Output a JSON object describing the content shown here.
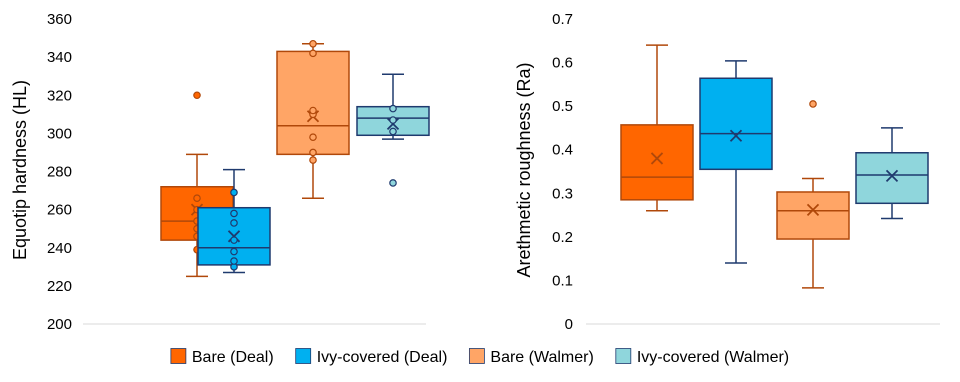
{
  "chart_data": [
    {
      "type": "box",
      "ylabel": "Equotip hardness (HL)",
      "xlabel": "",
      "ylim": [
        200,
        360
      ],
      "yticks": [
        200,
        220,
        240,
        260,
        280,
        300,
        320,
        340,
        360
      ],
      "grid": false,
      "series": [
        {
          "name": "Bare (Deal)",
          "color": "#FF6600",
          "edge": "#B0480A",
          "min": 225,
          "q1": 244,
          "median": 254,
          "q3": 272,
          "max": 289,
          "mean": 260,
          "points": [
            239,
            246,
            250,
            254,
            260,
            266,
            320
          ]
        },
        {
          "name": "Ivy-covered (Deal)",
          "color": "#00B0F0",
          "edge": "#1F3A6E",
          "min": 227,
          "q1": 231,
          "median": 240,
          "q3": 261,
          "max": 281,
          "mean": 246,
          "points": [
            230,
            233,
            238,
            244,
            253,
            258,
            269
          ]
        },
        {
          "name": "Bare (Walmer)",
          "color": "#FFA566",
          "edge": "#B0480A",
          "min": 266,
          "q1": 289,
          "median": 304,
          "q3": 343,
          "max": 347,
          "mean": 309,
          "points": [
            286,
            290,
            298,
            310,
            312,
            342,
            347
          ]
        },
        {
          "name": "Ivy-covered (Walmer)",
          "color": "#8FD6DC",
          "edge": "#1F3A6E",
          "min": 297,
          "q1": 299,
          "median": 308,
          "q3": 314,
          "max": 331,
          "mean": 305,
          "points": [
            274,
            301,
            307,
            313
          ]
        }
      ]
    },
    {
      "type": "box",
      "ylabel": "Arethmetic roughness (Ra)",
      "xlabel": "",
      "ylim": [
        0,
        0.7
      ],
      "yticks": [
        "0",
        "0.1",
        "0.2",
        "0.3",
        "0.4",
        "0.5",
        "0.6",
        "0.7"
      ],
      "grid": false,
      "series": [
        {
          "name": "Bare (Deal)",
          "color": "#FF6600",
          "edge": "#B0480A",
          "min": 0.26,
          "q1": 0.285,
          "median": 0.337,
          "q3": 0.457,
          "max": 0.64,
          "mean": 0.38,
          "points": []
        },
        {
          "name": "Ivy-covered (Deal)",
          "color": "#00B0F0",
          "edge": "#1F3A6E",
          "min": 0.14,
          "q1": 0.355,
          "median": 0.437,
          "q3": 0.564,
          "max": 0.604,
          "mean": 0.432,
          "points": []
        },
        {
          "name": "Bare (Walmer)",
          "color": "#FFA566",
          "edge": "#B0480A",
          "min": 0.083,
          "q1": 0.195,
          "median": 0.26,
          "q3": 0.303,
          "max": 0.334,
          "mean": 0.262,
          "points": [
            0.505
          ]
        },
        {
          "name": "Ivy-covered (Walmer)",
          "color": "#8FD6DC",
          "edge": "#1F3A6E",
          "min": 0.242,
          "q1": 0.277,
          "median": 0.342,
          "q3": 0.393,
          "max": 0.45,
          "mean": 0.34,
          "points": []
        }
      ]
    }
  ],
  "legend": {
    "placement": "bottom-center",
    "items": [
      {
        "label": "Bare (Deal)",
        "color": "#FF6600"
      },
      {
        "label": "Ivy-covered (Deal)",
        "color": "#00B0F0"
      },
      {
        "label": "Bare (Walmer)",
        "color": "#FFA566"
      },
      {
        "label": "Ivy-covered (Walmer)",
        "color": "#8FD6DC"
      }
    ]
  }
}
